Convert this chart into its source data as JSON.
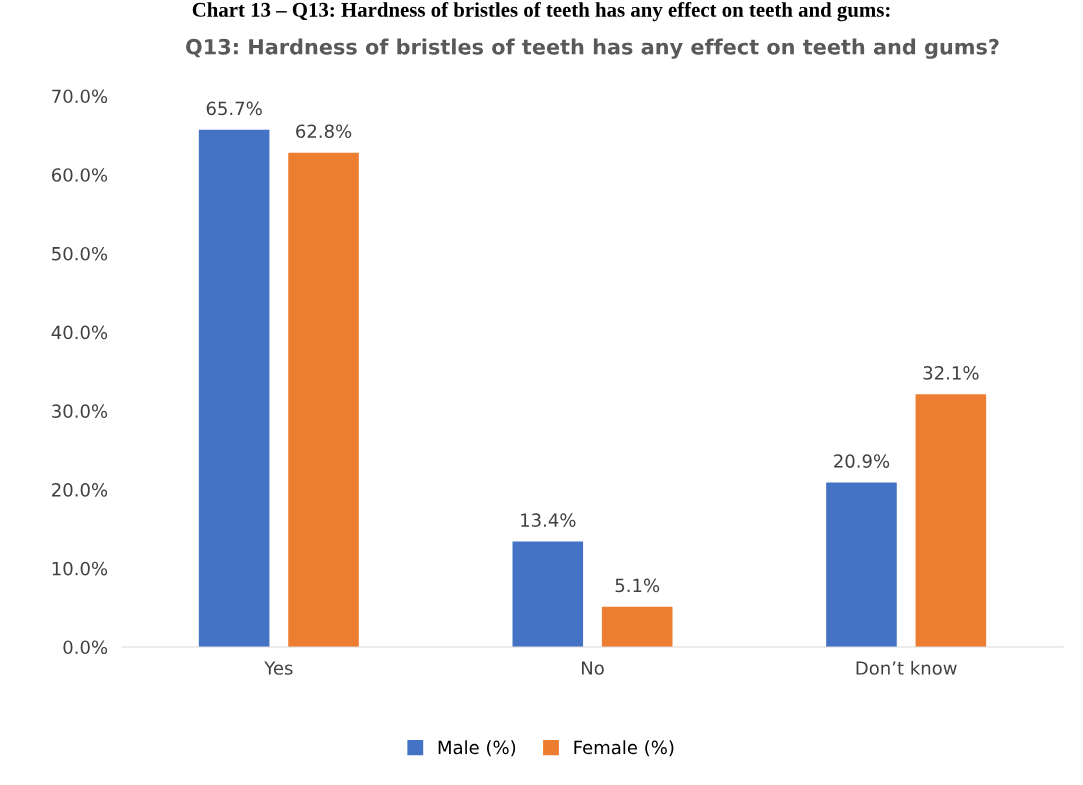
{
  "chart_data": {
    "type": "bar",
    "title": "Q13: Hardness of bristles of teeth has any effect on teeth and gums?",
    "annotations": [
      "Chart 13 – Q13: Hardness of bristles of teeth has any effect on teeth and gums:"
    ],
    "categories": [
      "Yes",
      "No",
      "Don’t know"
    ],
    "series": [
      {
        "name": "Male (%)",
        "color": "#4472c4",
        "values": [
          65.7,
          13.4,
          20.9
        ]
      },
      {
        "name": "Female (%)",
        "color": "#ed7d31",
        "values": [
          62.8,
          5.1,
          32.1
        ]
      }
    ],
    "ylim": [
      0,
      70
    ],
    "yticks": [
      {
        "value": 0,
        "label": "0.0%"
      },
      {
        "value": 10,
        "label": "10.0%"
      },
      {
        "value": 20,
        "label": "20.0%"
      },
      {
        "value": 30,
        "label": "30.0%"
      },
      {
        "value": 40,
        "label": "40.0%"
      },
      {
        "value": 50,
        "label": "50.0%"
      },
      {
        "value": 60,
        "label": "60.0%"
      },
      {
        "value": 70,
        "label": "70.0%"
      }
    ],
    "value_labels": [
      [
        "65.7%",
        "13.4%",
        "20.9%"
      ],
      [
        "62.8%",
        "5.1%",
        "32.1%"
      ]
    ],
    "grid": false,
    "legend": "bottom"
  }
}
